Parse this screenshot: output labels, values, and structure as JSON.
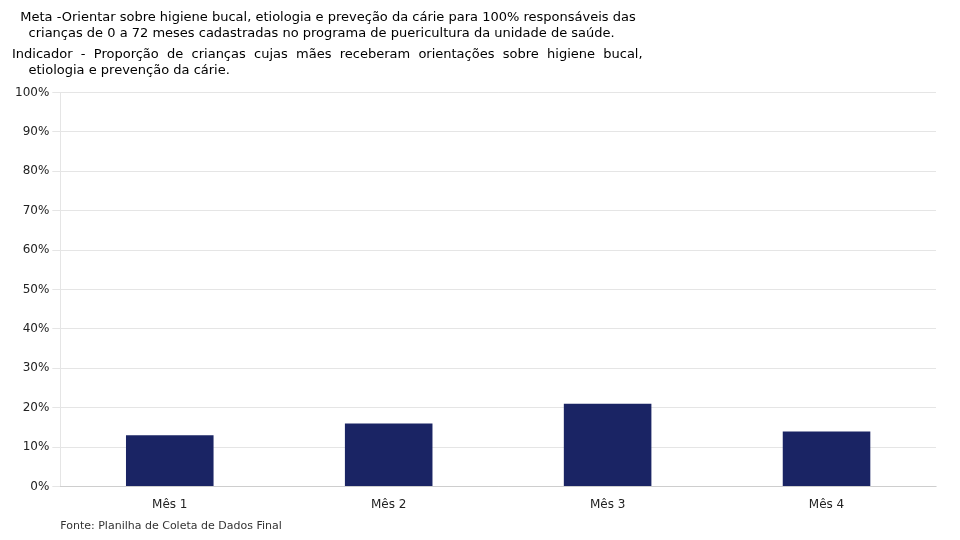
{
  "chart_data": {
    "type": "bar",
    "title": [
      "  Meta -Orientar sobre higiene bucal, etiologia e preveção da cárie para 100% responsáveis das",
      "    crianças de 0 a 72 meses cadastradas no programa de puericultura da unidade de saúde."
    ],
    "subtitle": [
      "Indicador  -  Proporção  de  crianças  cujas  mães  receberam  orientações  sobre  higiene  bucal,",
      "    etiologia e prevenção da cárie."
    ],
    "annotations": [
      "Fonte: Planilha de Coleta de Dados Final"
    ],
    "categories": [
      "Mês 1",
      "Mês 2",
      "Mês 3",
      "Mês 4"
    ],
    "values": [
      0.13,
      0.16,
      0.21,
      0.14
    ],
    "color": "#1a2464",
    "ylim": [
      0,
      1.0
    ],
    "yticks": [
      {
        "value": 0.0,
        "label": "0%"
      },
      {
        "value": 0.1,
        "label": "10%"
      },
      {
        "value": 0.2,
        "label": "20%"
      },
      {
        "value": 0.3,
        "label": "30%"
      },
      {
        "value": 0.4,
        "label": "40%"
      },
      {
        "value": 0.5,
        "label": "50%"
      },
      {
        "value": 0.6,
        "label": "60%"
      },
      {
        "value": 0.7,
        "label": "70%"
      },
      {
        "value": 0.8,
        "label": "80%"
      },
      {
        "value": 0.9,
        "label": "90%"
      },
      {
        "value": 1.0,
        "label": "100%"
      }
    ],
    "grid": true
  }
}
